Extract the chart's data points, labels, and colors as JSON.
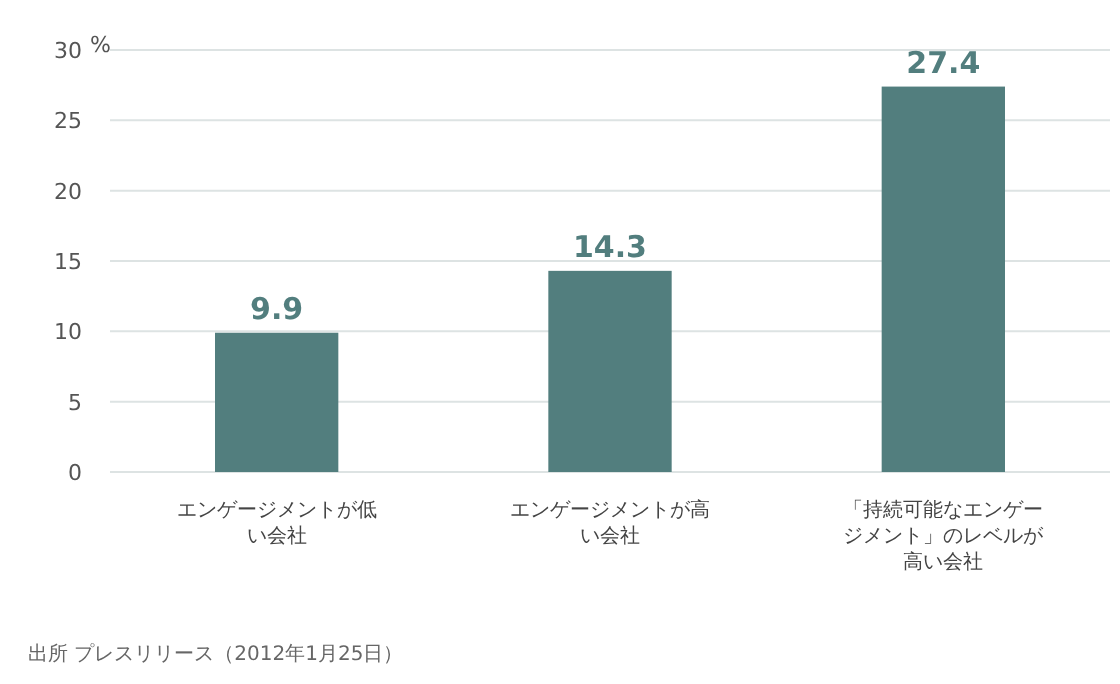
{
  "chart_data": {
    "type": "bar",
    "ylabel": "%",
    "categories": [
      "エンゲージメントが低い会社",
      "エンゲージメントが高い会社",
      "「持続可能なエンゲージメント」のレベルが高い会社"
    ],
    "values": [
      9.9,
      14.3,
      27.4
    ],
    "color": "#527e7e",
    "ylim": [
      0,
      30
    ],
    "yticks": [
      0,
      5,
      10,
      15,
      20,
      25,
      30
    ],
    "grid": "y",
    "data_labels": true,
    "annotations": [
      "出所 プレスリリース（2012年1月25日）"
    ]
  }
}
